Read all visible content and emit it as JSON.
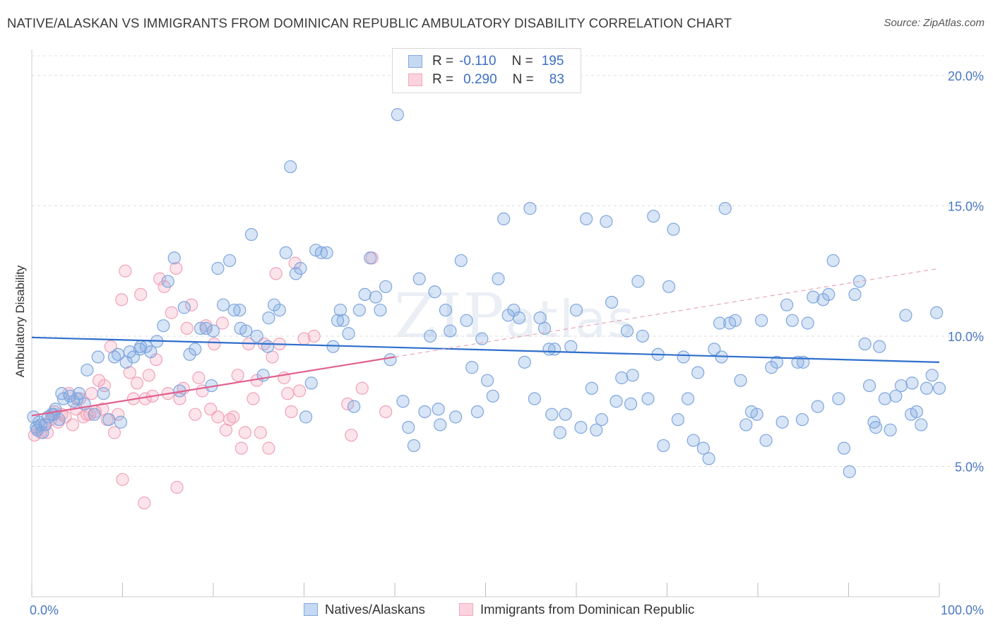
{
  "header": {
    "title": "NATIVE/ALASKAN VS IMMIGRANTS FROM DOMINICAN REPUBLIC AMBULATORY DISABILITY CORRELATION CHART",
    "source": "Source: ZipAtlas.com"
  },
  "watermark": {
    "zip": "ZIP",
    "atlas": "atlas"
  },
  "legend_top": {
    "rows": [
      {
        "r_label": "R =",
        "r_value": "-0.110",
        "n_label": "N =",
        "n_value": "195",
        "color": "#7fa8e0"
      },
      {
        "r_label": "R =",
        "r_value": "0.290",
        "n_label": "N =",
        "n_value": "83",
        "color": "#f4a7bd"
      }
    ]
  },
  "legend_bottom": {
    "items": [
      {
        "label": "Natives/Alaskans",
        "color": "#7fa8e0"
      },
      {
        "label": "Immigrants from Dominican Republic",
        "color": "#f4a7bd"
      }
    ]
  },
  "chart_data": {
    "type": "scatter",
    "ylabel": "Ambulatory Disability",
    "x_range": [
      0,
      100
    ],
    "y_range": [
      0,
      21
    ],
    "x_tick_labels": [
      "0.0%",
      "100.0%"
    ],
    "y_ticks": [
      5,
      10,
      15,
      20
    ],
    "y_tick_labels": [
      "5.0%",
      "10.0%",
      "15.0%",
      "20.0%"
    ],
    "grid": "horizontal dashed",
    "colors": {
      "blue": "#7fa8e0",
      "blue_line": "#2f6fcc",
      "pink": "#f4a7bd",
      "pink_line": "#e0608e"
    },
    "series": [
      {
        "name": "Natives/Alaskans",
        "color": "#7fa8e0",
        "trend": {
          "x": [
            0,
            100
          ],
          "y": [
            9.95,
            9.0
          ],
          "style": "solid"
        },
        "points": [
          [
            0.2,
            6.9
          ],
          [
            0.5,
            6.5
          ],
          [
            0.8,
            6.7
          ],
          [
            1.2,
            6.3
          ],
          [
            1.5,
            6.6
          ],
          [
            1.8,
            6.9
          ],
          [
            2.2,
            7.0
          ],
          [
            2.6,
            7.2
          ],
          [
            3.0,
            6.8
          ],
          [
            3.5,
            7.6
          ],
          [
            4.2,
            7.7
          ],
          [
            4.6,
            7.5
          ],
          [
            5.2,
            7.8
          ],
          [
            5.8,
            7.4
          ],
          [
            6.1,
            8.7
          ],
          [
            6.9,
            7.0
          ],
          [
            7.3,
            9.2
          ],
          [
            7.9,
            7.8
          ],
          [
            8.5,
            6.8
          ],
          [
            9.1,
            9.2
          ],
          [
            9.8,
            6.7
          ],
          [
            10.4,
            9.0
          ],
          [
            10.8,
            9.4
          ],
          [
            11.2,
            9.2
          ],
          [
            11.9,
            9.5
          ],
          [
            12.6,
            9.6
          ],
          [
            13.1,
            9.4
          ],
          [
            13.8,
            9.8
          ],
          [
            14.5,
            10.4
          ],
          [
            15.0,
            12.1
          ],
          [
            15.7,
            13.0
          ],
          [
            16.3,
            7.9
          ],
          [
            16.8,
            11.1
          ],
          [
            17.4,
            9.3
          ],
          [
            18.0,
            9.5
          ],
          [
            18.6,
            10.3
          ],
          [
            19.2,
            10.3
          ],
          [
            19.8,
            8.1
          ],
          [
            20.5,
            12.6
          ],
          [
            21.1,
            11.2
          ],
          [
            21.8,
            12.9
          ],
          [
            22.3,
            11.0
          ],
          [
            23.0,
            10.3
          ],
          [
            23.6,
            10.2
          ],
          [
            24.2,
            13.9
          ],
          [
            24.8,
            10.0
          ],
          [
            25.5,
            8.5
          ],
          [
            26.1,
            10.7
          ],
          [
            26.7,
            11.2
          ],
          [
            27.3,
            11.0
          ],
          [
            28.0,
            13.2
          ],
          [
            28.5,
            16.5
          ],
          [
            29.1,
            12.4
          ],
          [
            29.6,
            12.6
          ],
          [
            30.2,
            6.9
          ],
          [
            30.8,
            8.2
          ],
          [
            31.3,
            13.3
          ],
          [
            31.9,
            13.2
          ],
          [
            32.5,
            13.2
          ],
          [
            33.2,
            9.6
          ],
          [
            33.7,
            10.6
          ],
          [
            34.3,
            10.6
          ],
          [
            34.9,
            10.1
          ],
          [
            35.5,
            7.3
          ],
          [
            36.1,
            11.0
          ],
          [
            36.7,
            11.6
          ],
          [
            37.3,
            13.0
          ],
          [
            37.9,
            11.5
          ],
          [
            38.4,
            11.0
          ],
          [
            39.0,
            11.9
          ],
          [
            39.5,
            9.1
          ],
          [
            40.3,
            18.5
          ],
          [
            40.9,
            7.5
          ],
          [
            41.5,
            6.5
          ],
          [
            42.1,
            5.8
          ],
          [
            42.7,
            12.2
          ],
          [
            43.3,
            7.1
          ],
          [
            43.9,
            10.0
          ],
          [
            44.4,
            11.7
          ],
          [
            45.0,
            6.6
          ],
          [
            45.6,
            11.0
          ],
          [
            46.1,
            10.2
          ],
          [
            46.7,
            6.9
          ],
          [
            47.3,
            12.9
          ],
          [
            47.9,
            10.6
          ],
          [
            48.5,
            8.8
          ],
          [
            49.1,
            7.1
          ],
          [
            49.6,
            9.9
          ],
          [
            50.2,
            8.3
          ],
          [
            50.8,
            7.7
          ],
          [
            51.4,
            12.2
          ],
          [
            52.0,
            14.5
          ],
          [
            52.5,
            10.8
          ],
          [
            53.1,
            11.0
          ],
          [
            53.7,
            10.7
          ],
          [
            54.3,
            9.0
          ],
          [
            54.9,
            14.9
          ],
          [
            55.4,
            7.6
          ],
          [
            56.0,
            10.7
          ],
          [
            56.5,
            10.3
          ],
          [
            57.0,
            9.5
          ],
          [
            57.6,
            9.5
          ],
          [
            58.2,
            6.3
          ],
          [
            58.8,
            7.0
          ],
          [
            59.4,
            9.6
          ],
          [
            60.0,
            11.0
          ],
          [
            60.5,
            6.5
          ],
          [
            61.1,
            14.5
          ],
          [
            61.7,
            8.0
          ],
          [
            62.2,
            6.4
          ],
          [
            62.8,
            6.8
          ],
          [
            63.3,
            14.4
          ],
          [
            63.9,
            11.3
          ],
          [
            64.4,
            7.5
          ],
          [
            65.0,
            8.4
          ],
          [
            65.6,
            10.2
          ],
          [
            66.2,
            8.5
          ],
          [
            66.8,
            12.1
          ],
          [
            67.3,
            10.0
          ],
          [
            67.9,
            7.6
          ],
          [
            68.5,
            14.6
          ],
          [
            69.0,
            9.3
          ],
          [
            69.6,
            5.8
          ],
          [
            70.2,
            11.9
          ],
          [
            70.7,
            14.1
          ],
          [
            71.2,
            6.8
          ],
          [
            71.8,
            9.2
          ],
          [
            72.3,
            7.6
          ],
          [
            72.9,
            6.0
          ],
          [
            73.4,
            8.6
          ],
          [
            74.0,
            5.7
          ],
          [
            74.6,
            5.3
          ],
          [
            75.2,
            9.5
          ],
          [
            75.8,
            10.5
          ],
          [
            76.4,
            14.9
          ],
          [
            76.9,
            10.5
          ],
          [
            77.5,
            10.6
          ],
          [
            78.1,
            8.3
          ],
          [
            78.7,
            6.6
          ],
          [
            79.3,
            7.1
          ],
          [
            79.9,
            7.0
          ],
          [
            80.4,
            10.6
          ],
          [
            80.9,
            6.0
          ],
          [
            81.5,
            8.8
          ],
          [
            82.1,
            9.0
          ],
          [
            82.7,
            6.7
          ],
          [
            83.2,
            11.2
          ],
          [
            83.8,
            10.6
          ],
          [
            84.4,
            9.0
          ],
          [
            84.9,
            6.8
          ],
          [
            85.5,
            10.5
          ],
          [
            86.1,
            11.5
          ],
          [
            86.6,
            7.3
          ],
          [
            87.2,
            11.4
          ],
          [
            87.8,
            11.6
          ],
          [
            88.3,
            12.9
          ],
          [
            88.9,
            7.6
          ],
          [
            89.5,
            5.7
          ],
          [
            90.1,
            4.8
          ],
          [
            90.7,
            11.6
          ],
          [
            91.2,
            12.1
          ],
          [
            91.8,
            9.7
          ],
          [
            92.3,
            8.1
          ],
          [
            92.8,
            6.7
          ],
          [
            93.4,
            9.6
          ],
          [
            94.0,
            7.6
          ],
          [
            94.6,
            6.4
          ],
          [
            95.2,
            7.7
          ],
          [
            95.8,
            8.1
          ],
          [
            96.3,
            10.8
          ],
          [
            96.9,
            7.0
          ],
          [
            97.5,
            7.1
          ],
          [
            98.0,
            6.6
          ],
          [
            98.6,
            8.0
          ],
          [
            99.2,
            8.5
          ],
          [
            99.7,
            10.9
          ],
          [
            100.0,
            8.0
          ],
          [
            0.6,
            6.4
          ],
          [
            1.0,
            6.6
          ],
          [
            2.4,
            7.0
          ],
          [
            3.3,
            7.8
          ],
          [
            5.0,
            7.6
          ],
          [
            9.5,
            9.3
          ],
          [
            12.0,
            9.6
          ],
          [
            20.0,
            10.2
          ],
          [
            22.9,
            11.0
          ],
          [
            26.0,
            9.6
          ],
          [
            34.0,
            11.0
          ],
          [
            44.8,
            7.2
          ],
          [
            57.3,
            7.0
          ],
          [
            66.0,
            7.4
          ],
          [
            76.0,
            9.2
          ],
          [
            85.0,
            9.0
          ],
          [
            93.0,
            6.5
          ],
          [
            97.0,
            8.2
          ]
        ]
      },
      {
        "name": "Immigrants from Dominican Republic",
        "color": "#f4a7bd",
        "trend": {
          "x": [
            0,
            40,
            100
          ],
          "y": [
            6.95,
            9.2,
            12.6
          ],
          "style": "solid-then-dashed"
        },
        "points": [
          [
            0.3,
            6.2
          ],
          [
            0.6,
            6.4
          ],
          [
            1.0,
            6.3
          ],
          [
            1.4,
            6.6
          ],
          [
            1.7,
            6.3
          ],
          [
            2.1,
            6.8
          ],
          [
            2.5,
            7.1
          ],
          [
            2.9,
            6.7
          ],
          [
            3.3,
            7.0
          ],
          [
            3.7,
            6.9
          ],
          [
            4.1,
            7.8
          ],
          [
            4.5,
            6.6
          ],
          [
            4.9,
            7.2
          ],
          [
            5.3,
            7.6
          ],
          [
            5.7,
            6.9
          ],
          [
            6.1,
            7.0
          ],
          [
            6.6,
            7.8
          ],
          [
            7.0,
            7.1
          ],
          [
            7.4,
            8.3
          ],
          [
            7.8,
            7.2
          ],
          [
            8.3,
            6.8
          ],
          [
            8.7,
            9.6
          ],
          [
            9.1,
            6.3
          ],
          [
            9.5,
            7.0
          ],
          [
            9.9,
            11.4
          ],
          [
            10.3,
            12.5
          ],
          [
            10.8,
            8.6
          ],
          [
            11.2,
            7.6
          ],
          [
            11.6,
            8.2
          ],
          [
            12.0,
            11.6
          ],
          [
            12.5,
            7.6
          ],
          [
            12.9,
            8.5
          ],
          [
            13.3,
            7.7
          ],
          [
            13.7,
            9.1
          ],
          [
            14.1,
            12.2
          ],
          [
            14.6,
            11.9
          ],
          [
            15.0,
            7.8
          ],
          [
            15.4,
            10.9
          ],
          [
            15.9,
            12.6
          ],
          [
            16.3,
            7.6
          ],
          [
            16.7,
            8.0
          ],
          [
            17.1,
            10.3
          ],
          [
            17.6,
            11.2
          ],
          [
            18.0,
            7.0
          ],
          [
            18.4,
            8.4
          ],
          [
            18.8,
            7.9
          ],
          [
            19.2,
            10.4
          ],
          [
            19.7,
            7.2
          ],
          [
            20.1,
            9.7
          ],
          [
            20.5,
            6.9
          ],
          [
            21.0,
            10.5
          ],
          [
            21.4,
            6.4
          ],
          [
            21.8,
            6.8
          ],
          [
            22.2,
            6.9
          ],
          [
            22.7,
            8.5
          ],
          [
            23.1,
            5.7
          ],
          [
            23.5,
            6.3
          ],
          [
            23.9,
            9.7
          ],
          [
            24.4,
            7.6
          ],
          [
            24.8,
            8.3
          ],
          [
            25.2,
            6.3
          ],
          [
            25.6,
            9.7
          ],
          [
            26.1,
            5.7
          ],
          [
            26.5,
            9.2
          ],
          [
            26.9,
            12.4
          ],
          [
            27.3,
            9.7
          ],
          [
            27.8,
            8.4
          ],
          [
            28.2,
            7.8
          ],
          [
            28.6,
            7.1
          ],
          [
            29.0,
            12.8
          ],
          [
            29.5,
            7.9
          ],
          [
            30.0,
            9.9
          ],
          [
            31.1,
            10.0
          ],
          [
            34.8,
            7.4
          ],
          [
            35.2,
            6.2
          ],
          [
            36.4,
            8.0
          ],
          [
            37.5,
            13.0
          ],
          [
            39.0,
            7.1
          ],
          [
            10.0,
            4.5
          ],
          [
            12.4,
            3.6
          ],
          [
            16.0,
            4.2
          ],
          [
            6.4,
            7.0
          ],
          [
            8.0,
            8.1
          ]
        ]
      }
    ]
  }
}
